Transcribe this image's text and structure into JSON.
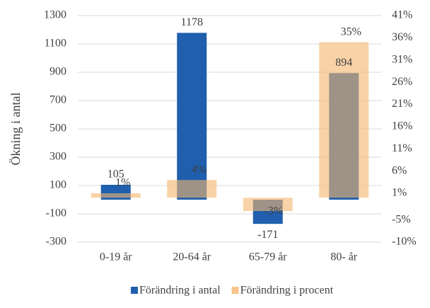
{
  "chart_data": {
    "type": "bar",
    "y_label": "Ökning i antal",
    "categories": [
      "0-19 år",
      "20-64 år",
      "65-79 år",
      "80- år"
    ],
    "series": [
      {
        "name": "Förändring i antal",
        "color": "#1f5fad",
        "values": [
          105,
          1178,
          -171,
          894
        ]
      },
      {
        "name": "Förändring i procent",
        "color": "#f5b56e",
        "axis": "y2",
        "values": [
          1,
          4,
          -3,
          35
        ],
        "value_labels": [
          "1%",
          "4%",
          "-3%",
          "35%"
        ]
      }
    ],
    "ylim": [
      -300,
      1300
    ],
    "yticks": [
      -300,
      -100,
      100,
      300,
      500,
      700,
      900,
      1100,
      1300
    ],
    "y2lim": [
      -10,
      41
    ],
    "y2ticks": [
      {
        "value": -10,
        "label": "-10%"
      },
      {
        "value": -5,
        "label": "-5%"
      },
      {
        "value": 1,
        "label": "1%"
      },
      {
        "value": 6,
        "label": "6%"
      },
      {
        "value": 11,
        "label": "11%"
      },
      {
        "value": 16,
        "label": "16%"
      },
      {
        "value": 21,
        "label": "21%"
      },
      {
        "value": 26,
        "label": "26%"
      },
      {
        "value": 31,
        "label": "31%"
      },
      {
        "value": 36,
        "label": "36%"
      },
      {
        "value": 41,
        "label": "41%"
      }
    ],
    "grid": true,
    "legend": "bottom"
  }
}
